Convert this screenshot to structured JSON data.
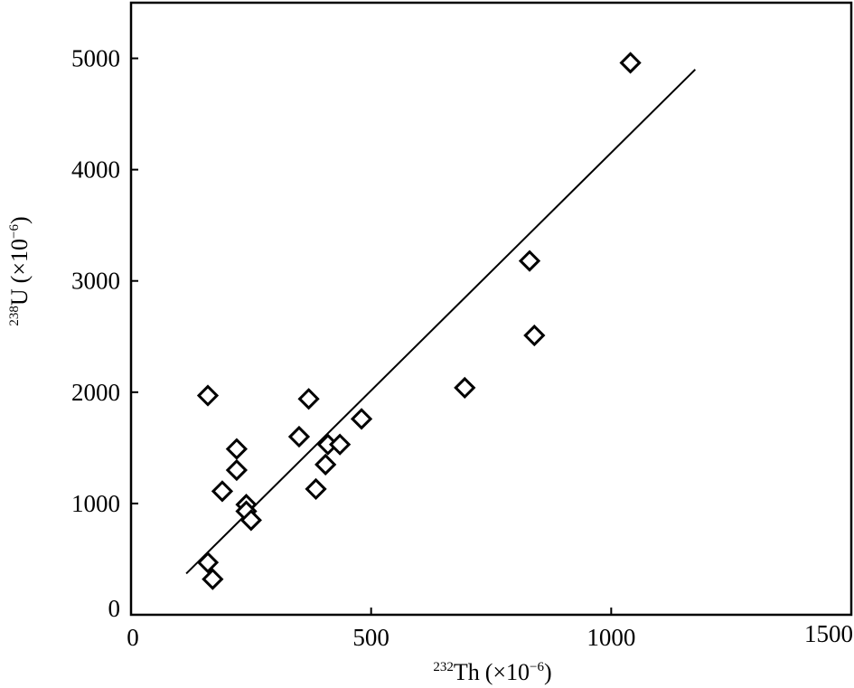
{
  "chart_data": {
    "type": "scatter",
    "title": "",
    "xlabel": {
      "sup": "232",
      "main": "Th",
      "unit_open": "(×10",
      "unit_exp": "−6",
      "unit_close": ")"
    },
    "ylabel": {
      "sup": "238",
      "main": "U",
      "unit_open": "(×10",
      "unit_exp": "−6",
      "unit_close": ")"
    },
    "xlim": [
      0,
      1500
    ],
    "ylim": [
      0,
      5500
    ],
    "x_ticks": [
      0,
      500,
      1000,
      1500
    ],
    "x_tick_labels": [
      "0",
      "500",
      "1000",
      "1500"
    ],
    "y_ticks": [
      0,
      1000,
      2000,
      3000,
      4000,
      5000
    ],
    "y_tick_labels": [
      "0",
      "1000",
      "2000",
      "3000",
      "4000",
      "5000"
    ],
    "grid": false,
    "series": [
      {
        "marker": "diamond-open",
        "color": "#000000",
        "points": [
          {
            "x": 1040,
            "y": 4960
          },
          {
            "x": 830,
            "y": 3180
          },
          {
            "x": 840,
            "y": 2510
          },
          {
            "x": 695,
            "y": 2040
          },
          {
            "x": 160,
            "y": 1970
          },
          {
            "x": 370,
            "y": 1940
          },
          {
            "x": 480,
            "y": 1760
          },
          {
            "x": 350,
            "y": 1600
          },
          {
            "x": 410,
            "y": 1530
          },
          {
            "x": 435,
            "y": 1530
          },
          {
            "x": 220,
            "y": 1490
          },
          {
            "x": 220,
            "y": 1300
          },
          {
            "x": 405,
            "y": 1350
          },
          {
            "x": 385,
            "y": 1130
          },
          {
            "x": 190,
            "y": 1110
          },
          {
            "x": 240,
            "y": 990
          },
          {
            "x": 240,
            "y": 930
          },
          {
            "x": 250,
            "y": 850
          },
          {
            "x": 160,
            "y": 470
          },
          {
            "x": 170,
            "y": 320
          }
        ]
      }
    ],
    "trendline": {
      "type": "linear",
      "x": [
        115,
        1175
      ],
      "y": [
        370,
        4900
      ]
    }
  }
}
